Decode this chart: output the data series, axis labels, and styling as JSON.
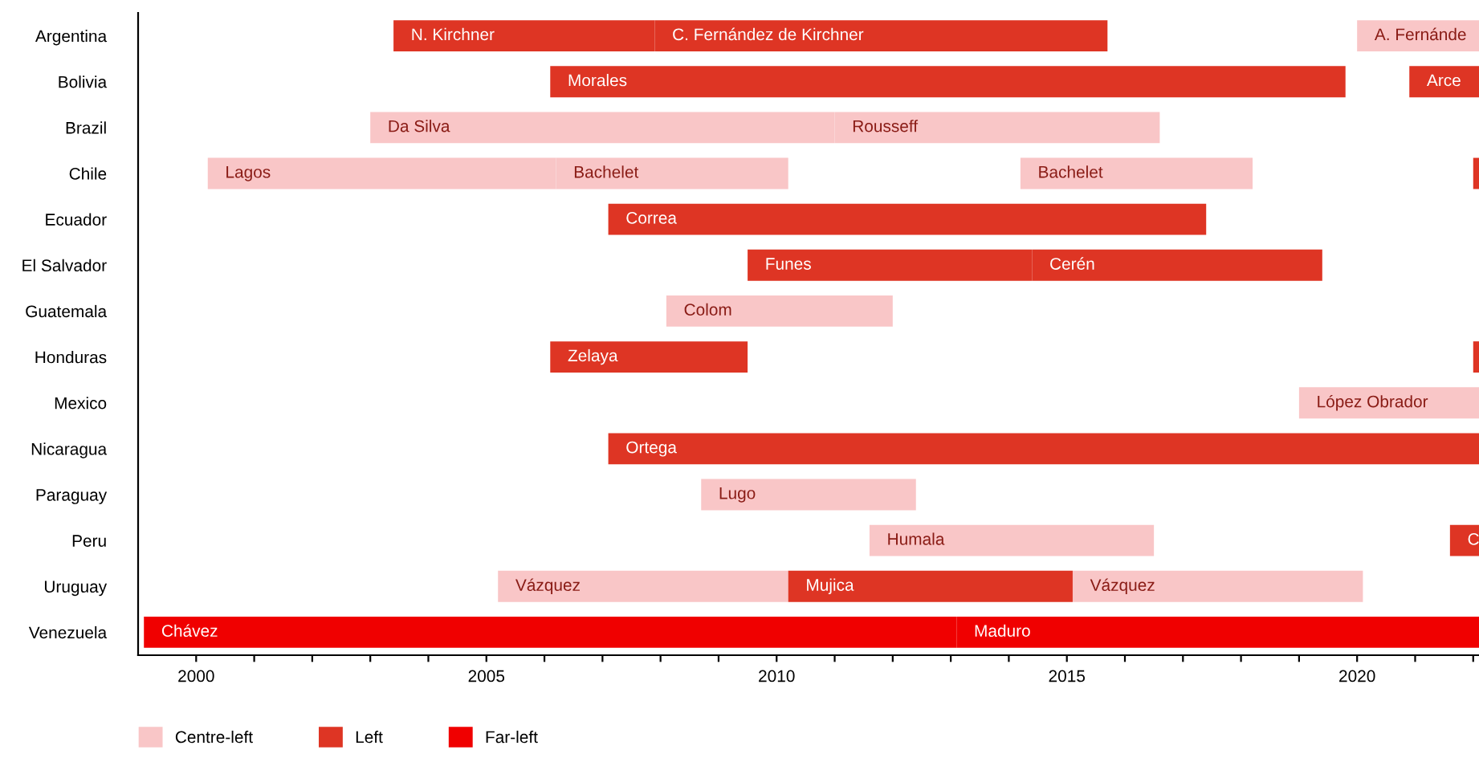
{
  "chart_data": {
    "type": "bar",
    "orientation": "horizontal",
    "categories": [
      "Argentina",
      "Bolivia",
      "Brazil",
      "Chile",
      "Ecuador",
      "El Salvador",
      "Guatemala",
      "Honduras",
      "Mexico",
      "Nicaragua",
      "Paraguay",
      "Peru",
      "Uruguay",
      "Venezuela"
    ],
    "series": [
      {
        "name": "Centre-left",
        "color": "#f9c6c7",
        "base": [
          2020.0,
          null,
          2003.0,
          2000.2,
          null,
          null,
          2008.1,
          null,
          2019.0,
          null,
          2008.7,
          2011.6,
          2005.2,
          null
        ],
        "values": [
          2.1,
          null,
          8.0,
          6.0,
          null,
          null,
          3.9,
          null,
          3.1,
          null,
          3.7,
          4.9,
          5.0,
          null
        ],
        "value_labels": [
          "A. Fernánde",
          null,
          "Da Silva",
          "Lagos",
          null,
          null,
          "Colom",
          null,
          "López Obrador",
          null,
          "Lugo",
          "Humala",
          "Vázquez",
          null
        ]
      },
      {
        "color": "#f9c6c7",
        "base": [
          null,
          null,
          2011.0,
          2006.2,
          null,
          null,
          null,
          null,
          null,
          null,
          null,
          null,
          2015.1,
          null
        ],
        "values": [
          null,
          null,
          5.6,
          4.0,
          null,
          null,
          null,
          null,
          null,
          null,
          null,
          null,
          5.0,
          null
        ],
        "value_labels": [
          null,
          null,
          "Rousseff",
          "Bachelet",
          null,
          null,
          null,
          null,
          null,
          null,
          null,
          null,
          "Vázquez",
          null
        ]
      },
      {
        "color": "#f9c6c7",
        "base": [
          null,
          null,
          null,
          2014.2,
          null,
          null,
          null,
          null,
          null,
          null,
          null,
          null,
          null,
          null
        ],
        "values": [
          null,
          null,
          null,
          4.0,
          null,
          null,
          null,
          null,
          null,
          null,
          null,
          null,
          null,
          null
        ],
        "value_labels": [
          null,
          null,
          null,
          "Bachelet",
          null,
          null,
          null,
          null,
          null,
          null,
          null,
          null,
          null,
          null
        ]
      },
      {
        "name": "Left",
        "color": "#de3524",
        "base": [
          2003.4,
          2006.1,
          null,
          null,
          2007.1,
          2009.5,
          null,
          2006.1,
          null,
          2007.1,
          null,
          2021.6,
          2010.2,
          null
        ],
        "values": [
          4.5,
          13.7,
          null,
          null,
          10.3,
          4.9,
          null,
          3.4,
          null,
          15.0,
          null,
          0.5,
          4.9,
          null
        ],
        "value_labels": [
          "N. Kirchner",
          "Morales",
          null,
          null,
          "Correa",
          "Funes",
          null,
          "Zelaya",
          null,
          "Ortega",
          null,
          "C",
          "Mujica",
          null
        ]
      },
      {
        "color": "#de3524",
        "base": [
          2007.9,
          2020.9,
          null,
          2022.0,
          null,
          2014.4,
          null,
          2022.0,
          null,
          null,
          null,
          null,
          null,
          null
        ],
        "values": [
          7.8,
          1.2,
          null,
          0.1,
          null,
          5.0,
          null,
          0.1,
          null,
          null,
          null,
          null,
          null,
          null
        ],
        "value_labels": [
          "C. Fernández de Kirchner",
          "Arce",
          null,
          null,
          null,
          "Cerén",
          null,
          null,
          null,
          null,
          null,
          null,
          null,
          null
        ]
      },
      {
        "name": "Far-left",
        "color": "#f00000",
        "base": [
          null,
          null,
          null,
          null,
          null,
          null,
          null,
          null,
          null,
          null,
          null,
          null,
          null,
          1999.1
        ],
        "values": [
          null,
          null,
          null,
          null,
          null,
          null,
          null,
          null,
          null,
          null,
          null,
          null,
          null,
          14.0
        ],
        "value_labels": [
          null,
          null,
          null,
          null,
          null,
          null,
          null,
          null,
          null,
          null,
          null,
          null,
          null,
          "Chávez"
        ]
      },
      {
        "color": "#f00000",
        "base": [
          null,
          null,
          null,
          null,
          null,
          null,
          null,
          null,
          null,
          null,
          null,
          null,
          null,
          2013.1
        ],
        "values": [
          null,
          null,
          null,
          null,
          null,
          null,
          null,
          null,
          null,
          null,
          null,
          null,
          null,
          9.0
        ],
        "value_labels": [
          null,
          null,
          null,
          null,
          null,
          null,
          null,
          null,
          null,
          null,
          null,
          null,
          null,
          "Maduro"
        ]
      }
    ],
    "xlim": [
      1999,
      2022.1
    ],
    "xticks": [
      2000,
      {
        "value": 2001,
        "label": null
      },
      {
        "value": 2002,
        "label": null
      },
      {
        "value": 2003,
        "label": null
      },
      {
        "value": 2004,
        "label": null
      },
      2005,
      {
        "value": 2006,
        "label": null
      },
      {
        "value": 2007,
        "label": null
      },
      {
        "value": 2008,
        "label": null
      },
      {
        "value": 2009,
        "label": null
      },
      2010,
      {
        "value": 2011,
        "label": null
      },
      {
        "value": 2012,
        "label": null
      },
      {
        "value": 2013,
        "label": null
      },
      {
        "value": 2014,
        "label": null
      },
      2015,
      {
        "value": 2016,
        "label": null
      },
      {
        "value": 2017,
        "label": null
      },
      {
        "value": 2018,
        "label": null
      },
      {
        "value": 2019,
        "label": null
      },
      2020,
      {
        "value": 2021,
        "label": null
      },
      {
        "value": 2022,
        "label": null
      }
    ],
    "legend": "bottom",
    "grid": false
  }
}
